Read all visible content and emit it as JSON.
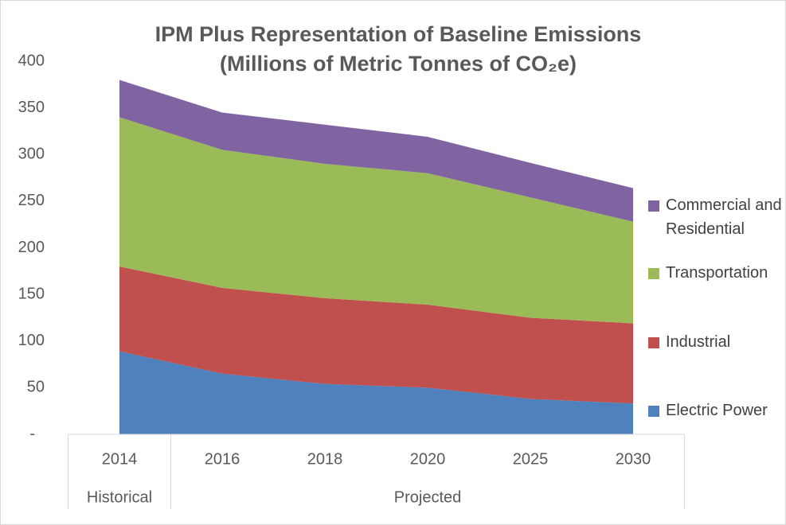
{
  "chart_data": {
    "type": "stacked_area",
    "title": [
      "IPM Plus Representation of Baseline Emissions",
      "(Millions of Metric Tonnes of CO₂e)"
    ],
    "categories": [
      "2014",
      "2016",
      "2018",
      "2020",
      "2025",
      "2030"
    ],
    "groups": [
      {
        "label": "Historical",
        "count": 1
      },
      {
        "label": "Projected",
        "count": 5
      }
    ],
    "series": [
      {
        "name": "Electric Power",
        "color": "#4f81bd",
        "values": [
          89,
          65,
          54,
          50,
          38,
          33
        ]
      },
      {
        "name": "Industrial",
        "color": "#c0504d",
        "values": [
          91,
          92,
          92,
          89,
          87,
          86
        ]
      },
      {
        "name": "Transportation",
        "color": "#9bbb59",
        "values": [
          160,
          148,
          144,
          141,
          129,
          109
        ]
      },
      {
        "name": "Commercial and Residential",
        "color": "#8064a2",
        "values": [
          40,
          40,
          42,
          39,
          37,
          36
        ]
      }
    ],
    "ylim": [
      0,
      400
    ],
    "yticks": [
      {
        "value": 0,
        "label": "-"
      },
      50,
      100,
      150,
      200,
      250,
      300,
      350,
      400
    ],
    "legend": "right"
  }
}
